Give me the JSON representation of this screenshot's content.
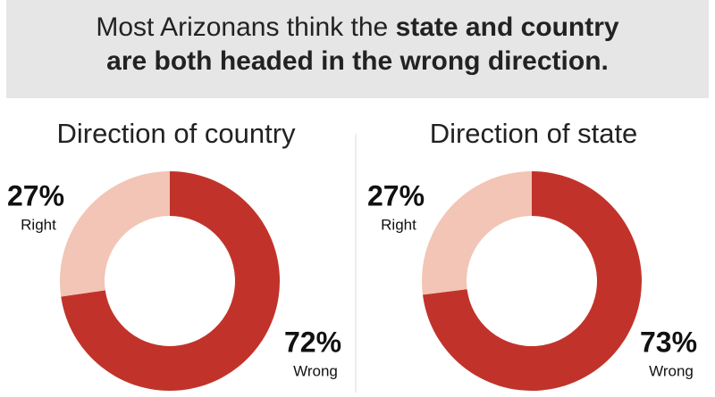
{
  "header": {
    "title": [
      "Most Arizonans think the",
      "state and country",
      "are both headed in the wrong direction."
    ]
  },
  "chart_data": [
    {
      "type": "pie",
      "title": "Direction of country",
      "categories": [
        "Right",
        "Wrong"
      ],
      "values": [
        27,
        72
      ],
      "value_labels": [
        "27%",
        "72%"
      ],
      "colors": [
        "#f2c5b6",
        "#c1332a"
      ]
    },
    {
      "type": "pie",
      "title": "Direction of state",
      "categories": [
        "Right",
        "Wrong"
      ],
      "values": [
        27,
        73
      ],
      "value_labels": [
        "27%",
        "73%"
      ],
      "colors": [
        "#f2c5b6",
        "#c1332a"
      ]
    }
  ]
}
